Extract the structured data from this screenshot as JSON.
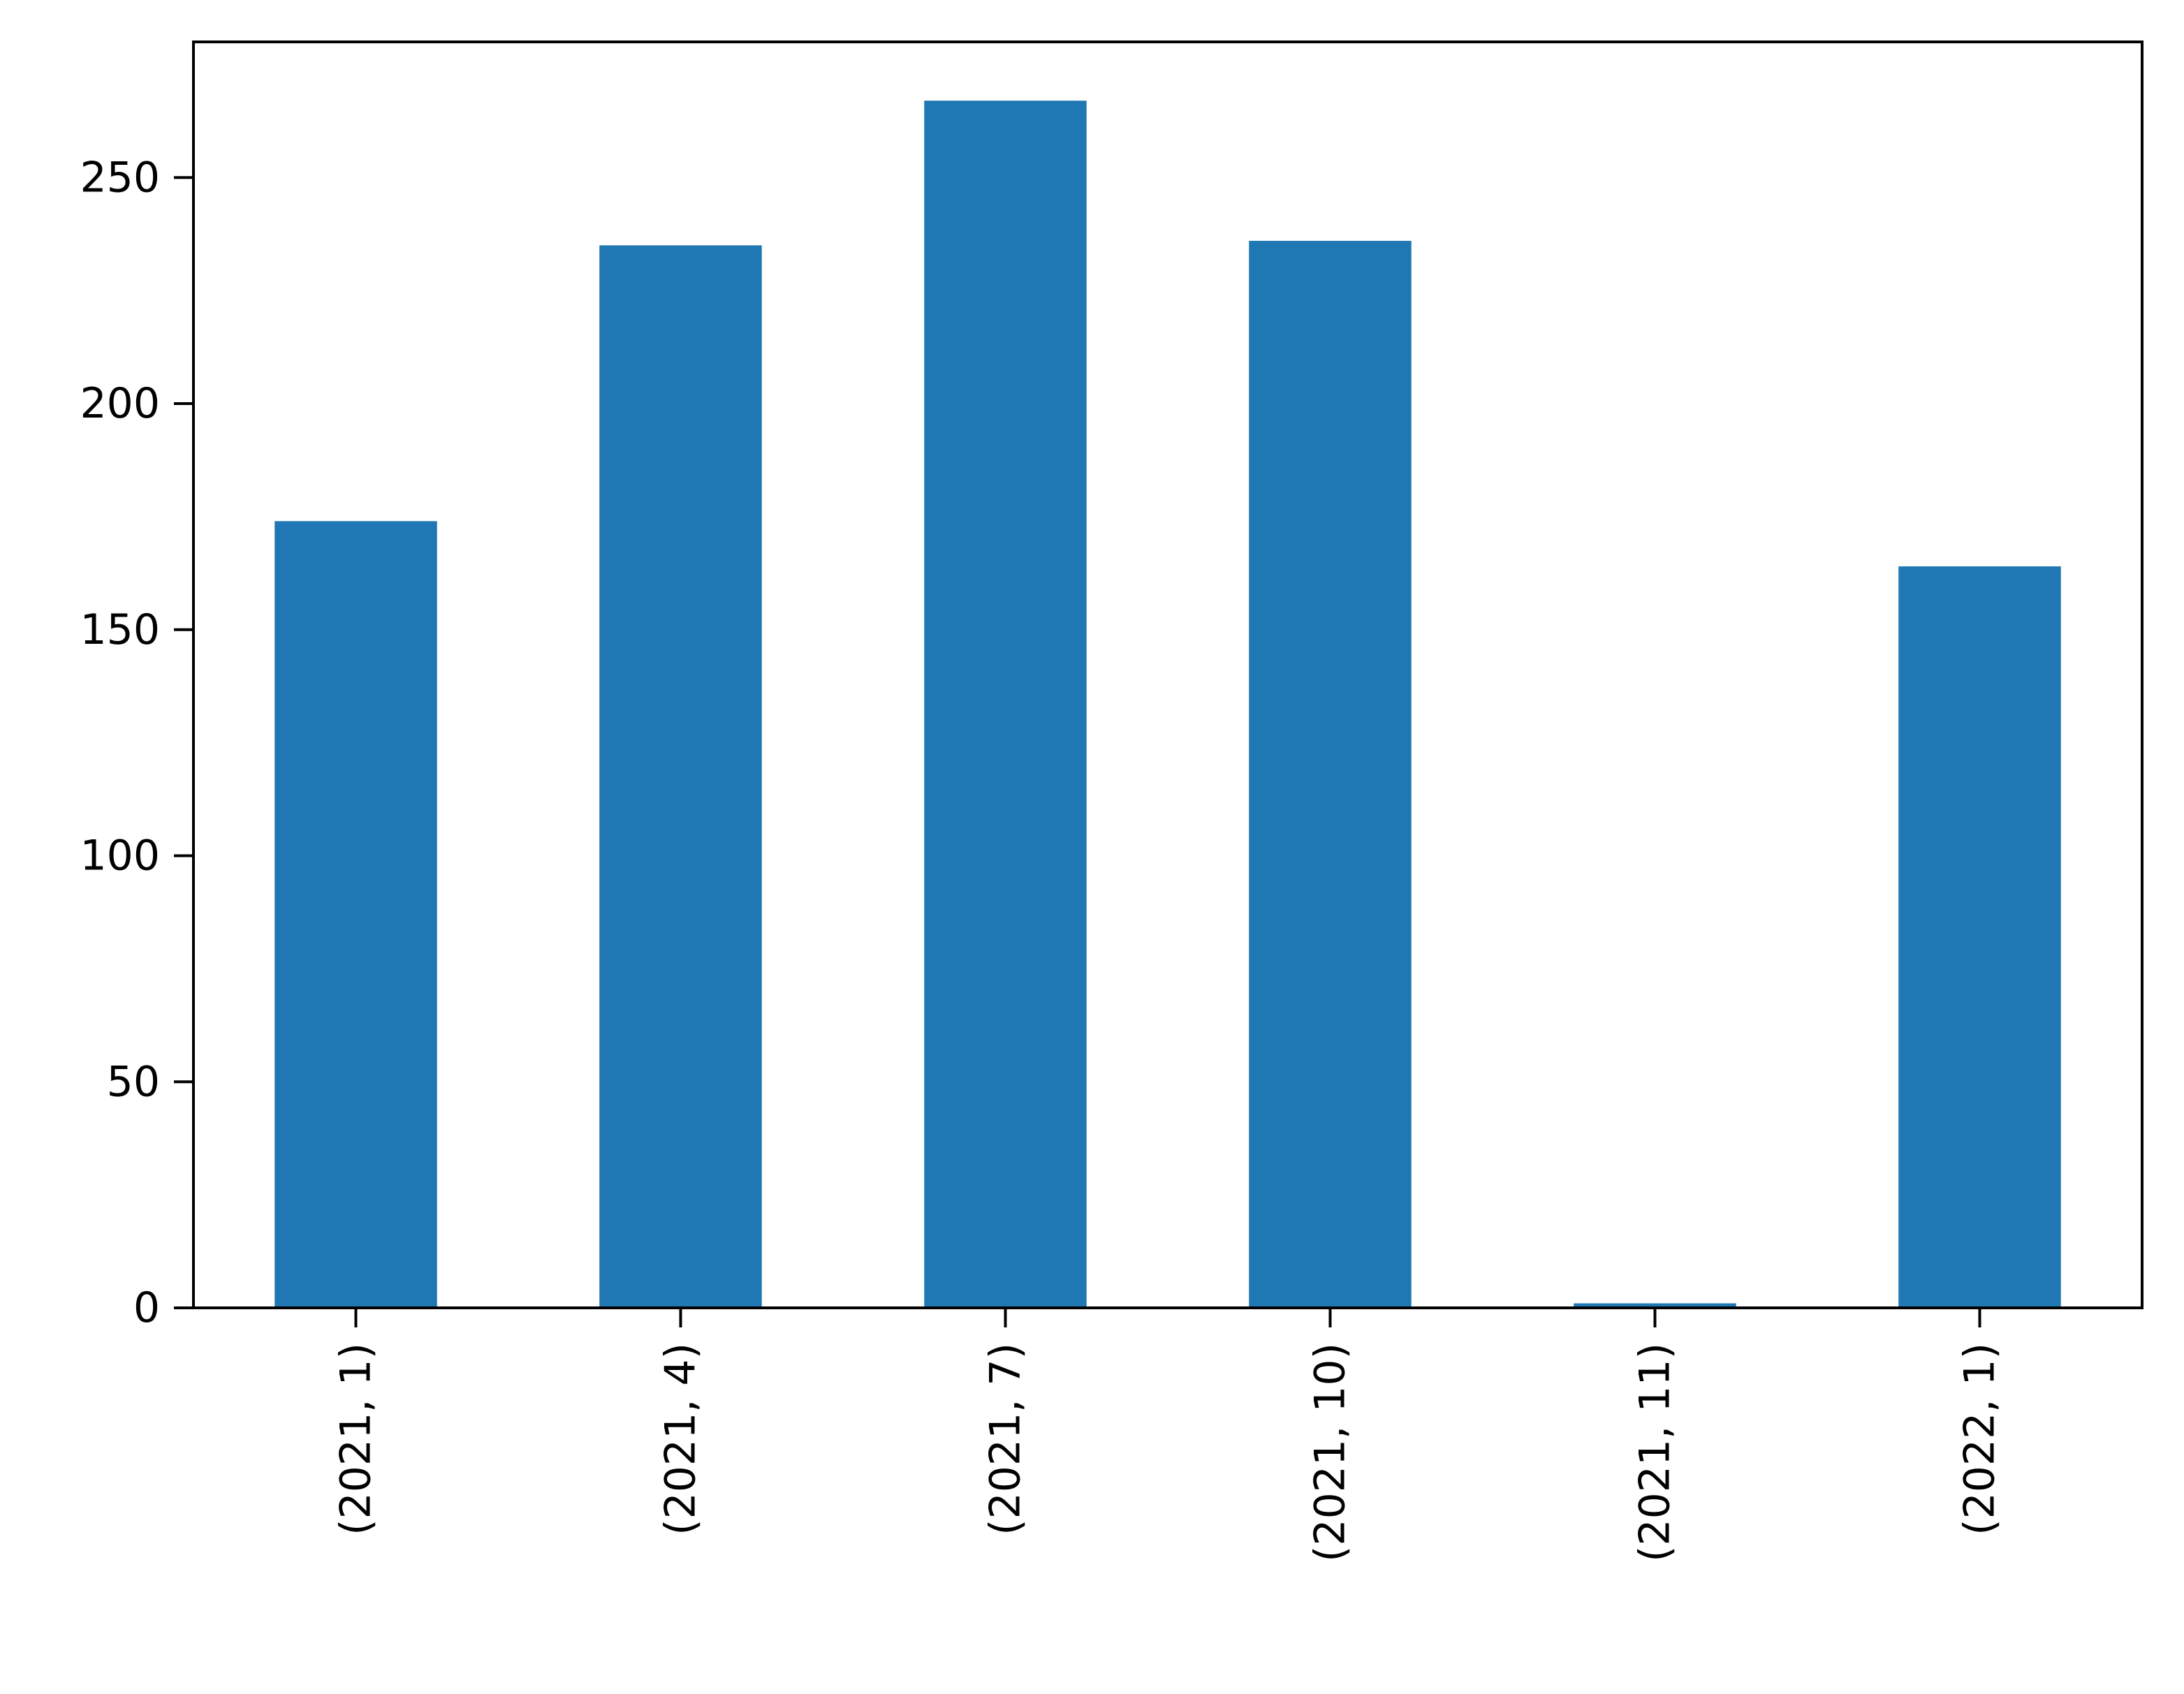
{
  "chart_data": {
    "type": "bar",
    "title": "",
    "xlabel": "",
    "ylabel": "",
    "categories": [
      "(2021, 1)",
      "(2021, 4)",
      "(2021, 7)",
      "(2021, 10)",
      "(2021, 11)",
      "(2022, 1)"
    ],
    "values": [
      174,
      235,
      267,
      236,
      1,
      164
    ],
    "ylim": [
      0,
      280
    ],
    "yticks": [
      0,
      50,
      100,
      150,
      200,
      250
    ],
    "grid": false,
    "legend": false,
    "bar_color": "#1f77b4"
  }
}
